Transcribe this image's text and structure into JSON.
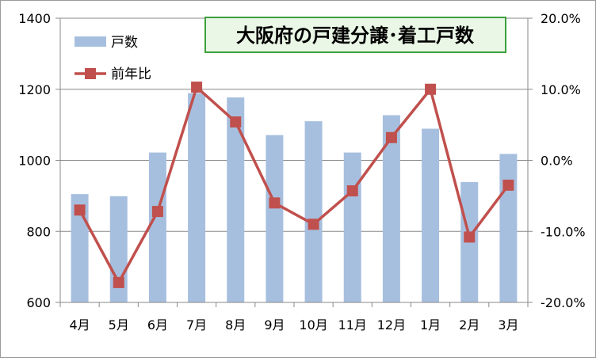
{
  "chart_data": {
    "type": "bar",
    "title": "大阪府の戸建分譲･着工戸数",
    "categories": [
      "4月",
      "5月",
      "6月",
      "7月",
      "8月",
      "9月",
      "10月",
      "11月",
      "12月",
      "1月",
      "2月",
      "3月"
    ],
    "series": [
      {
        "name": "戸数",
        "type": "bar",
        "axis": "left",
        "color": "#A7BFDF",
        "values": [
          905,
          899,
          1022,
          1189,
          1177,
          1071,
          1110,
          1022,
          1127,
          1089,
          939,
          1018
        ]
      },
      {
        "name": "前年比",
        "type": "line",
        "axis": "right",
        "unit": "%",
        "color": "#C0504D",
        "values": [
          -7.0,
          -17.2,
          -7.2,
          10.3,
          5.4,
          -6.0,
          -9.0,
          -4.3,
          3.2,
          10.0,
          -10.8,
          -3.5
        ]
      }
    ],
    "left_axis": {
      "min": 600,
      "max": 1400,
      "ticks": [
        "600",
        "800",
        "1000",
        "1200",
        "1400"
      ]
    },
    "right_axis": {
      "min": -20,
      "max": 20,
      "ticks": [
        "-20.0%",
        "-10.0%",
        "0.0%",
        "10.0%",
        "20.0%"
      ]
    },
    "grid": true,
    "legend": "top-left",
    "colors": {
      "title_border": "#3CA03C",
      "title_bg": "#EAF7E6",
      "grid": "#888888",
      "frame": "#9A9A9A"
    }
  }
}
